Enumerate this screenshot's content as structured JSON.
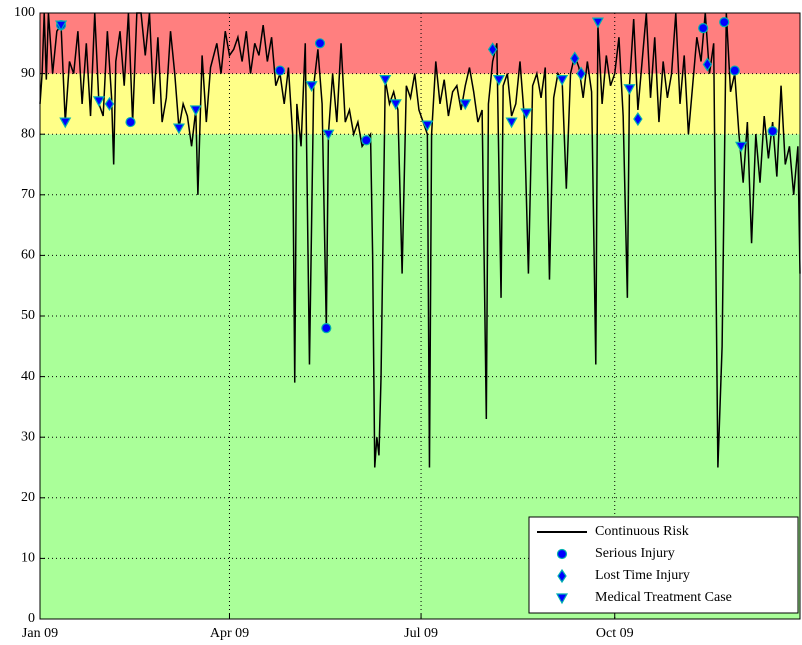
{
  "chart_data": {
    "type": "line",
    "xlim": [
      0,
      361
    ],
    "xticks": [
      {
        "value": 0,
        "label": "Jan 09"
      },
      {
        "value": 90,
        "label": "Apr 09"
      },
      {
        "value": 181,
        "label": "Jul 09"
      },
      {
        "value": 273,
        "label": "Oct 09"
      }
    ],
    "ylim": [
      0,
      100
    ],
    "yticks": [
      0,
      10,
      20,
      30,
      40,
      50,
      60,
      70,
      80,
      90,
      100
    ],
    "grid": true,
    "legend": "lower right",
    "bands": [
      {
        "from": 0,
        "to": 80,
        "color": "#aaff99"
      },
      {
        "from": 80,
        "to": 90,
        "color": "#ffff88"
      },
      {
        "from": 90,
        "to": 100,
        "color": "#ff7f7f"
      }
    ],
    "series": [
      {
        "name": "Continuous Risk",
        "color": "#000000",
        "marker": "line",
        "x": [
          0,
          1,
          2,
          3,
          4,
          5,
          6,
          8,
          10,
          12,
          14,
          16,
          18,
          20,
          22,
          24,
          26,
          28,
          30,
          32,
          34,
          35,
          36,
          38,
          40,
          42,
          44,
          46,
          48,
          50,
          52,
          54,
          56,
          58,
          60,
          62,
          64,
          66,
          68,
          70,
          72,
          74,
          75,
          77,
          79,
          81,
          84,
          86,
          88,
          90,
          92,
          94,
          96,
          98,
          100,
          102,
          104,
          106,
          108,
          110,
          112,
          114,
          116,
          118,
          120,
          121,
          122,
          124,
          126,
          128,
          130,
          132,
          134,
          136,
          137,
          139,
          141,
          143,
          145,
          147,
          149,
          151,
          153,
          155,
          157,
          158,
          159,
          160,
          161,
          162,
          164,
          166,
          168,
          170,
          172,
          174,
          176,
          178,
          180,
          182,
          184,
          185,
          186,
          188,
          190,
          192,
          194,
          196,
          198,
          200,
          202,
          204,
          206,
          208,
          210,
          212,
          213,
          215,
          217,
          219,
          220,
          222,
          224,
          226,
          228,
          230,
          232,
          234,
          236,
          238,
          240,
          242,
          244,
          246,
          248,
          250,
          252,
          254,
          256,
          258,
          260,
          262,
          264,
          265,
          267,
          269,
          271,
          273,
          275,
          277,
          279,
          280,
          282,
          284,
          286,
          288,
          290,
          292,
          294,
          296,
          298,
          300,
          302,
          304,
          306,
          308,
          310,
          312,
          314,
          316,
          318,
          320,
          322,
          324,
          326,
          328,
          330,
          332,
          334,
          336,
          338,
          340,
          342,
          344,
          346,
          348,
          350,
          352,
          354,
          356,
          358,
          360,
          361
        ],
        "values": [
          85,
          90,
          100,
          89,
          100,
          95,
          90,
          97,
          98,
          82,
          92,
          90,
          97,
          85,
          95,
          83,
          100,
          85,
          83,
          97,
          86,
          75,
          92,
          97,
          88,
          100,
          82,
          100,
          100,
          93,
          100,
          85,
          96,
          82,
          86,
          97,
          90,
          81,
          85,
          83,
          78,
          84,
          70,
          93,
          82,
          91,
          95,
          90,
          97,
          93,
          94,
          96,
          92,
          97,
          90,
          95,
          93,
          98,
          92,
          96,
          88,
          90,
          85,
          91,
          80,
          39,
          85,
          78,
          95,
          42,
          88,
          94,
          85,
          48,
          80,
          90,
          82,
          95,
          82,
          84,
          80,
          82,
          78,
          79,
          80,
          60,
          25,
          30,
          27,
          40,
          89,
          85,
          87,
          84,
          57,
          88,
          86,
          90,
          84,
          82,
          80,
          25,
          80,
          92,
          85,
          89,
          83,
          87,
          88,
          84,
          88,
          91,
          87,
          82,
          84,
          33,
          85,
          92,
          95,
          53,
          88,
          90,
          83,
          85,
          92,
          83,
          57,
          88,
          90,
          86,
          91,
          56,
          86,
          90,
          89,
          71,
          90,
          93,
          91,
          86,
          92,
          87,
          42,
          98,
          85,
          93,
          88,
          90,
          96,
          83,
          53,
          88,
          99,
          84,
          92,
          100,
          86,
          96,
          82,
          92,
          86,
          90,
          100,
          85,
          93,
          80,
          88,
          96,
          92,
          100,
          90,
          95,
          25,
          45,
          100,
          87,
          90,
          80,
          72,
          82,
          62,
          80,
          72,
          83,
          76,
          82,
          73,
          88,
          75,
          78,
          70,
          78,
          57
        ]
      },
      {
        "name": "Serious Injury",
        "color": "#0000ff",
        "marker": "circle",
        "x": [
          10,
          43,
          114,
          133,
          136,
          155,
          315,
          325,
          330,
          348
        ],
        "values": [
          98,
          82,
          90.5,
          95,
          48,
          79,
          97.5,
          98.5,
          90.5,
          80.5
        ]
      },
      {
        "name": "Lost Time Injury",
        "color": "#0000ff",
        "marker": "diamond",
        "x": [
          33,
          215,
          254,
          257,
          284,
          317
        ],
        "values": [
          85,
          94,
          92.5,
          90,
          82.5,
          91.5
        ]
      },
      {
        "name": "Medical Treatment Case",
        "color": "#0000ff",
        "marker": "triangle",
        "x": [
          10,
          12,
          28,
          66,
          74,
          129,
          137,
          164,
          169,
          184,
          202,
          218,
          224,
          231,
          248,
          265,
          280,
          333
        ],
        "values": [
          98,
          82,
          85.5,
          81,
          84,
          88,
          80,
          89,
          85,
          81.5,
          85,
          89,
          82,
          83.5,
          89,
          98.5,
          87.5,
          78
        ]
      }
    ]
  }
}
